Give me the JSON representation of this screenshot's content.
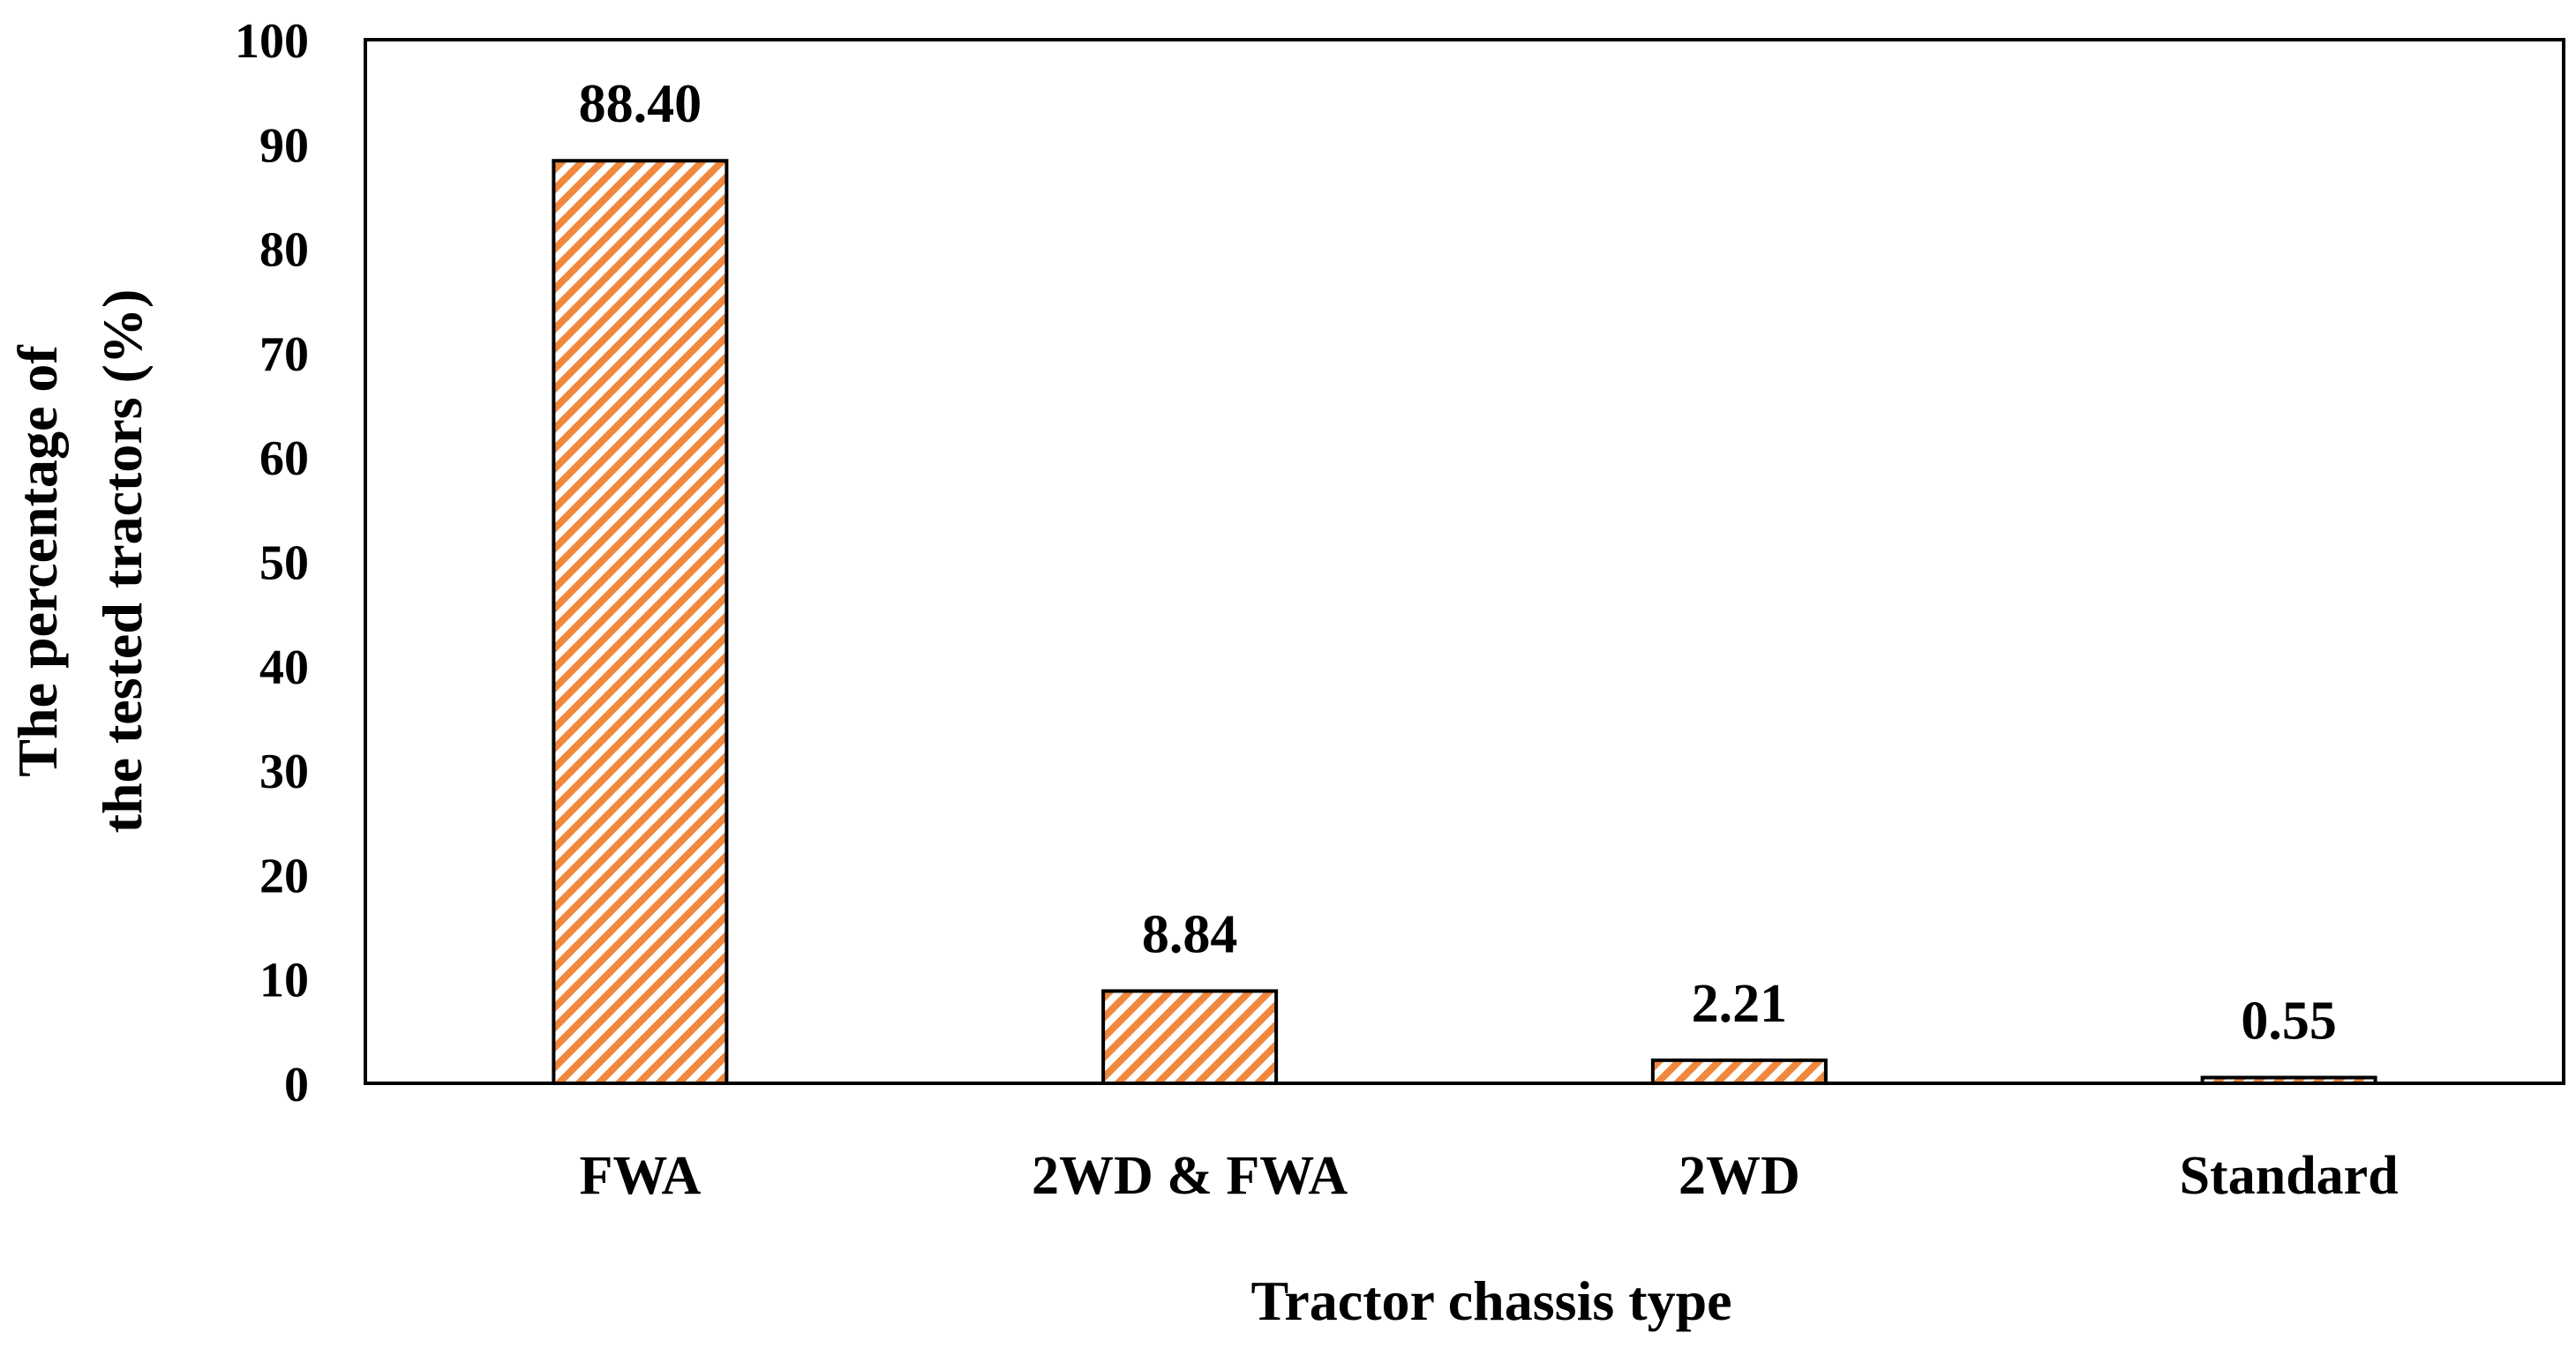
{
  "chart_data": {
    "type": "bar",
    "categories": [
      "FWA",
      "2WD & FWA",
      "2WD",
      "Standard"
    ],
    "series": [
      {
        "values": [
          88.4,
          8.84,
          2.21,
          0.55
        ]
      }
    ],
    "data_labels": [
      "88.40",
      "8.84",
      "2.21",
      "0.55"
    ],
    "xlabel": "Tractor chassis type",
    "ylabel": [
      "The percentage of",
      "the tested tractors (%)"
    ],
    "ylim": [
      0,
      100
    ],
    "yticks": [
      "0",
      "10",
      "20",
      "30",
      "40",
      "50",
      "60",
      "70",
      "80",
      "90",
      "100"
    ],
    "grid": false,
    "legend": "none",
    "colors": {
      "bar_stroke": "#000000",
      "hatch": "#F0883E",
      "bar_fill": "#ffffff",
      "frame": "#000000"
    },
    "pattern": "diagonal-hatch"
  }
}
